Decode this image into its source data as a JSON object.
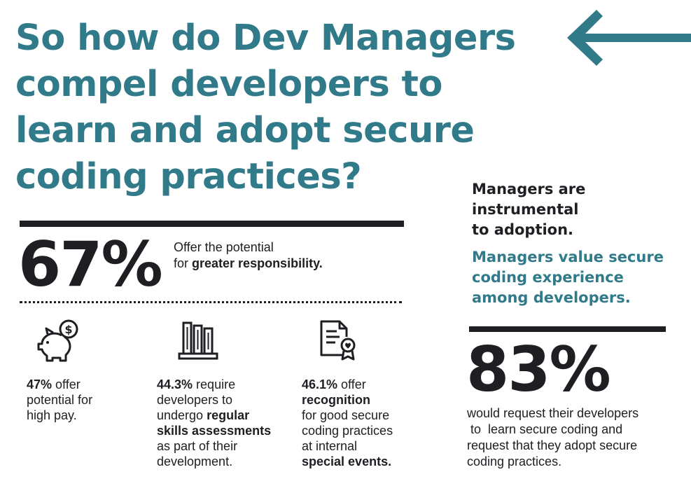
{
  "headline": "So how do Dev Managers compel developers to learn and adopt secure coding practices?",
  "colors": {
    "teal": "#317a8a",
    "ink": "#1e1e23"
  },
  "icons": [
    "left-arrow-icon",
    "piggy-bank-dollar-icon",
    "books-icon",
    "certificate-icon"
  ],
  "stat_main": {
    "value": "67%",
    "line1": "Offer the potential",
    "line2_prefix": "for ",
    "line2_bold": "greater responsibility."
  },
  "columns": [
    {
      "pct": "47%",
      "rest1": " offer",
      "rest2": "potential for",
      "rest3": "high pay."
    },
    {
      "pct": "44.3%",
      "rest1": " require",
      "rest2": "developers to",
      "rest3": "undergo ",
      "bold1": "regular",
      "bold2": "skills assessments",
      "rest4": "as part of their",
      "rest5": "development."
    },
    {
      "pct": "46.1%",
      "rest1": " offer",
      "bold1": "recognition",
      "rest2": "for good secure",
      "rest3": "coding practices",
      "rest4": "at internal",
      "bold2": "special events."
    }
  ],
  "managers": {
    "line1": "Managers are",
    "line2": "instrumental",
    "line3": "to adoption.",
    "value_line1": "Managers value secure",
    "value_line2": "coding experience",
    "value_line3": "among developers."
  },
  "stat_right": {
    "value": "83%",
    "line1": "would request their developers",
    "line2": " to  learn secure coding and",
    "line3": "request that they adopt secure",
    "line4": "coding practices."
  }
}
